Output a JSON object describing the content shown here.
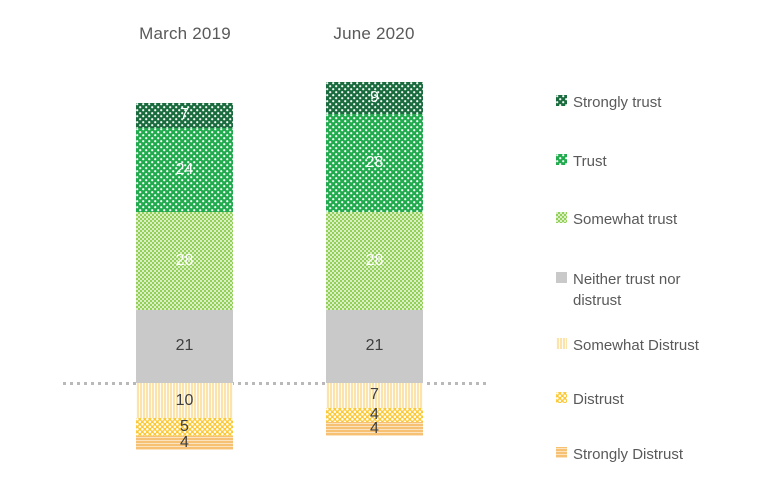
{
  "chart_data": {
    "type": "bar",
    "subtype": "stacked_column_diverging",
    "title": "",
    "categories": [
      "March 2019",
      "June 2020"
    ],
    "series": [
      {
        "name": "Strongly trust",
        "values": [
          7,
          9
        ],
        "color": "#1a6c3e",
        "pattern": "white-dots",
        "label_color": "#ffffff"
      },
      {
        "name": "Trust",
        "values": [
          24,
          28
        ],
        "color": "#21ab4e",
        "pattern": "white-dots",
        "label_color": "#ffffff"
      },
      {
        "name": "Somewhat trust",
        "values": [
          28,
          28
        ],
        "color": "#93d057",
        "pattern": "white-dots-dense",
        "label_color": "#ffffff"
      },
      {
        "name": "Neither trust nor distrust",
        "values": [
          21,
          21
        ],
        "color": "#c9c9c9",
        "pattern": "solid",
        "label_color": "#3f3f3f"
      },
      {
        "name": "Somewhat Distrust",
        "values": [
          10,
          7
        ],
        "color": "#fbe3ab",
        "pattern": "white-vertical-stripes",
        "label_color": "#3f3f3f"
      },
      {
        "name": "Distrust",
        "values": [
          5,
          4
        ],
        "color": "#fdc72f",
        "pattern": "white-dot-lattice",
        "label_color": "#3f3f3f"
      },
      {
        "name": "Strongly Distrust",
        "values": [
          4,
          4
        ],
        "color": "#f6c172",
        "pattern": "white-horizontal-stripes",
        "label_color": "#3f3f3f"
      }
    ],
    "data_labels": "values shown on each segment",
    "divider": {
      "style": "gray dotted horizontal line",
      "color": "#b9b9b9",
      "series_above": 4,
      "meaning": "separates trust/neutral segments (above) from distrust segments (below)"
    },
    "legend_position": "right",
    "header_text_color": "#595959"
  }
}
